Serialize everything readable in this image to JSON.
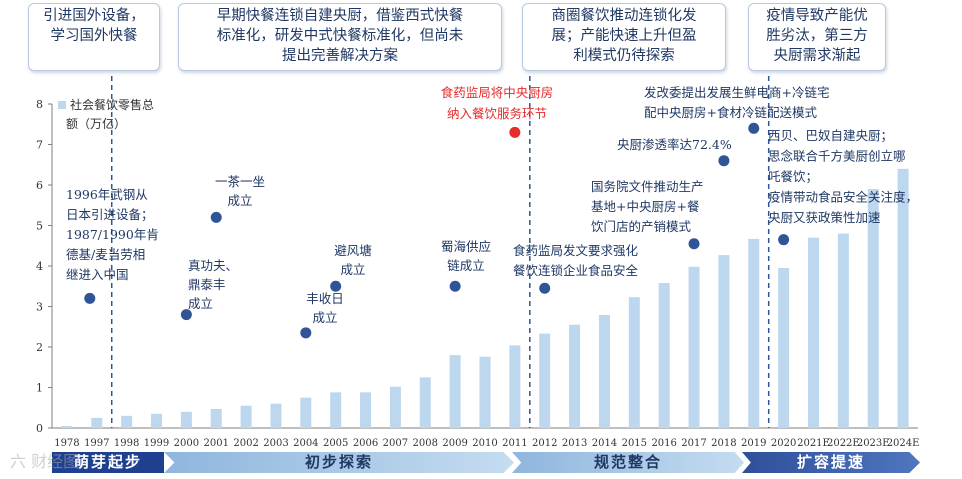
{
  "top_boxes": [
    {
      "lines": [
        "引进国外设备，",
        "学习国外快餐"
      ]
    },
    {
      "lines": [
        "早期快餐连锁自建央厨，借鉴西式快餐",
        "标准化，研发中式快餐标准化，但尚未",
        "提出完善解决方案"
      ]
    },
    {
      "lines": [
        "商圈餐饮推动连锁化发",
        "展；产能快速上升但盈",
        "利模式仍待探索"
      ]
    },
    {
      "lines": [
        "疫情导致产能优",
        "胜劣汰，第三方",
        "央厨需求渐起"
      ]
    }
  ],
  "phases": [
    {
      "label": "萌芽起步",
      "color": "#1f3f8f"
    },
    {
      "label": "初步探索",
      "color": "#a9cbe8"
    },
    {
      "label": "规范整合",
      "color": "#a9cbe8"
    },
    {
      "label": "扩容提速",
      "color": "#3a5da6"
    }
  ],
  "watermark": "六 财经图",
  "chart_data": {
    "type": "bar",
    "legend": [
      "社会餐饮零售总",
      "额（万亿）"
    ],
    "categories": [
      "1978",
      "1997",
      "1998",
      "1999",
      "2000",
      "2001",
      "2002",
      "2003",
      "2004",
      "2005",
      "2006",
      "2007",
      "2008",
      "2009",
      "2010",
      "2011",
      "2012",
      "2013",
      "2014",
      "2015",
      "2016",
      "2017",
      "2018",
      "2019",
      "2020",
      "2021E",
      "2022E",
      "2023E",
      "2024E"
    ],
    "values": [
      0.05,
      0.25,
      0.3,
      0.35,
      0.4,
      0.47,
      0.55,
      0.6,
      0.75,
      0.88,
      0.88,
      1.02,
      1.25,
      1.8,
      1.76,
      2.04,
      2.33,
      2.55,
      2.79,
      3.23,
      3.58,
      3.98,
      4.27,
      4.67,
      3.95,
      4.7,
      4.8,
      5.9,
      6.4
    ],
    "ylim": [
      0,
      8
    ],
    "yticks": [
      0,
      1,
      2,
      3,
      4,
      5,
      6,
      7,
      8
    ],
    "bar_color": "#bdd7ee",
    "events": [
      {
        "year": "1978",
        "lines": [
          "1996年武钢从",
          "日本引进设备；",
          "1987/1990年肯",
          "德基/麦当劳相",
          "继进入中国"
        ],
        "marker_y": 3.2,
        "color": "#2f5597"
      },
      {
        "year": "2000",
        "lines": [
          "真功夫、",
          "鼎泰丰",
          "成立"
        ],
        "marker_y": 2.8,
        "color": "#2f5597"
      },
      {
        "year": "2001",
        "lines": [
          "一茶一坐",
          "成立"
        ],
        "marker_y": 5.2,
        "color": "#2f5597"
      },
      {
        "year": "2004",
        "lines": [
          "丰收日",
          "成立"
        ],
        "marker_y": 2.35,
        "color": "#2f5597"
      },
      {
        "year": "2005",
        "lines": [
          "避风塘",
          "成立"
        ],
        "marker_y": 3.5,
        "color": "#2f5597"
      },
      {
        "year": "2009",
        "lines": [
          "蜀海供应",
          "链成立"
        ],
        "marker_y": 3.5,
        "color": "#2f5597"
      },
      {
        "year": "2011",
        "lines": [
          "食药监局将中央厨房",
          "纳入餐饮服务环节"
        ],
        "marker_y": 7.3,
        "color": "#e52b2b"
      },
      {
        "year": "2012",
        "lines": [
          "食药监局发文要求强化",
          "餐饮连锁企业食品安全"
        ],
        "marker_y": 3.45,
        "color": "#2f5597"
      },
      {
        "year": "2017",
        "lines": [
          "国务院文件推动生产",
          "基地+中央厨房+餐",
          "饮门店的产销模式"
        ],
        "marker_y": 4.55,
        "color": "#2f5597"
      },
      {
        "year": "2018",
        "lines": [
          "央厨渗透率达72.4%"
        ],
        "marker_y": 6.6,
        "color": "#2f5597"
      },
      {
        "year": "2019",
        "lines": [
          "发改委提出发展生鲜电商+冷链宅",
          "配中央厨房+食材冷链配送模式"
        ],
        "marker_y": 7.4,
        "color": "#2f5597"
      },
      {
        "year": "2020",
        "lines": [
          "西贝、巴奴自建央厨；",
          "思念联合千方美厨创立哪",
          "吒餐饮；",
          "疫情带动食品安全关注度，",
          "央厨又获政策性加速"
        ],
        "marker_y": 4.65,
        "color": "#2f5597"
      }
    ]
  }
}
